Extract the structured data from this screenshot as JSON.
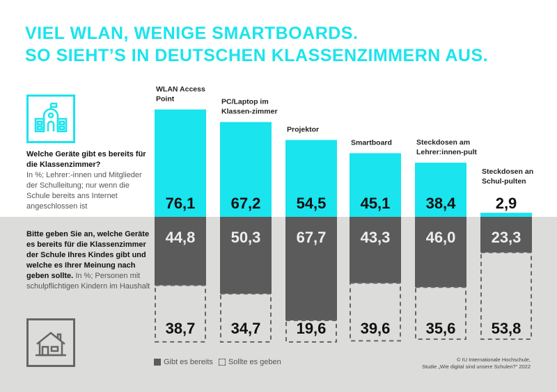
{
  "title_line1": "VIEL WLAN, WENIGE SMARTBOARDS.",
  "title_line2": "SO SIEHT’S IN DEUTSCHEN KLASSENZIMMERN AUS.",
  "q1": {
    "bold": "Welche Geräte gibt es bereits für die Klassenzimmer?",
    "note": "In %; Lehrer:-innen und Mitglieder der Schulleitung; nur wenn die Schule bereits ans Internet angeschlossen ist",
    "icon": "school-icon"
  },
  "q2": {
    "bold": "Bitte geben Sie an, welche Geräte es bereits für die Klassenzimmer der Schule Ihres Kindes gibt und welche es Ihrer Meinung nach geben sollte.",
    "note": "In %; Personen mit schulpflichtigen Kindern im Haushalt",
    "icon": "house-icon"
  },
  "legend": {
    "existing": "Gibt es bereits",
    "should": "Sollte es geben"
  },
  "credit": {
    "line1": "© IU Internationale Hochschule,",
    "line2": "Studie „Wie digital sind unsere Schulen?“ 2022"
  },
  "colors": {
    "cyan": "#1ae4ee",
    "gray": "#5b5b5b"
  },
  "chart_data": {
    "type": "bar",
    "categories": [
      "WLAN Access Point",
      "PC/Laptop im Klassen-zimmer",
      "Projektor",
      "Smartboard",
      "Steckdosen am Lehrer:innen-pult",
      "Steckdosen an Schul-pulten"
    ],
    "series": [
      {
        "name": "Welche Geräte gibt es bereits für die Klassenzimmer?",
        "values": [
          76.1,
          67.2,
          54.5,
          45.1,
          38.4,
          2.9
        ]
      },
      {
        "name": "Gibt es bereits",
        "values": [
          44.8,
          50.3,
          67.7,
          43.3,
          46.0,
          23.3
        ]
      },
      {
        "name": "Sollte es geben",
        "values": [
          38.7,
          34.7,
          19.6,
          39.6,
          35.6,
          53.8
        ]
      }
    ]
  }
}
